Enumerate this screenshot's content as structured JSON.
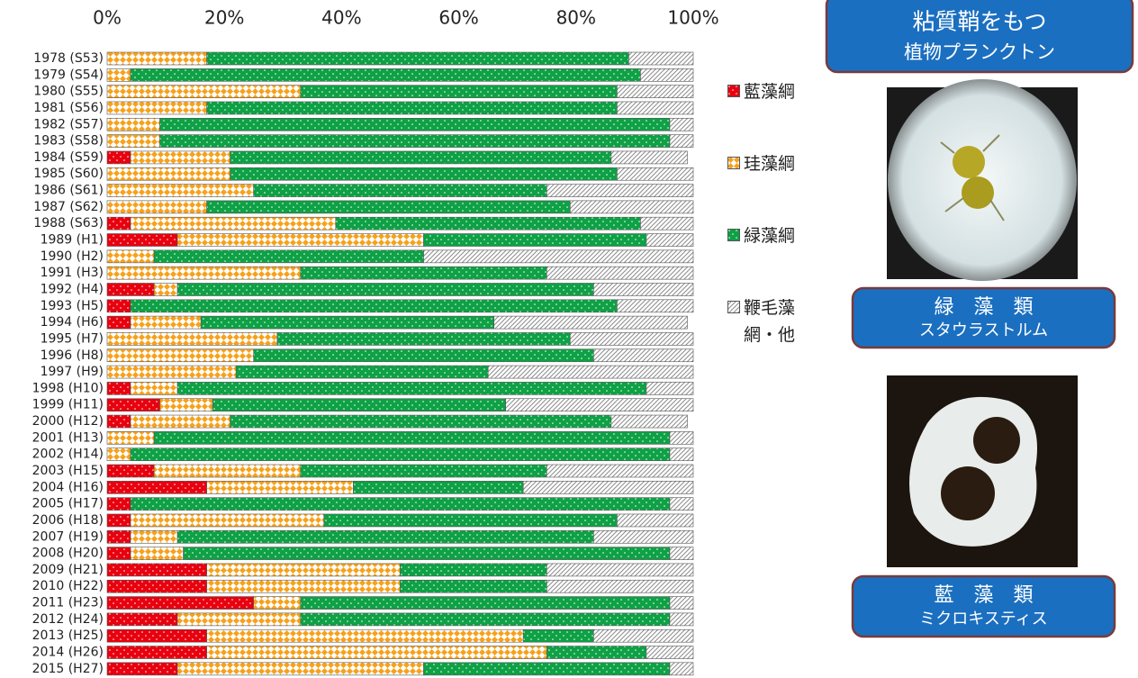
{
  "chart_data": {
    "type": "stacked-bar-horizontal",
    "categories": [
      "1978 (S53)",
      "1979 (S54)",
      "1980 (S55)",
      "1981 (S56)",
      "1982 (S57)",
      "1983 (S58)",
      "1984 (S59)",
      "1985 (S60)",
      "1986 (S61)",
      "1987 (S62)",
      "1988 (S63)",
      "1989 (H1)",
      "1990 (H2)",
      "1991 (H3)",
      "1992 (H4)",
      "1993 (H5)",
      "1994 (H6)",
      "1995 (H7)",
      "1996 (H8)",
      "1997 (H9)",
      "1998 (H10)",
      "1999 (H11)",
      "2000 (H12)",
      "2001 (H13)",
      "2002 (H14)",
      "2003 (H15)",
      "2004 (H16)",
      "2005 (H17)",
      "2006 (H18)",
      "2007 (H19)",
      "2008 (H20)",
      "2009 (H21)",
      "2010 (H22)",
      "2011 (H23)",
      "2012 (H24)",
      "2013 (H25)",
      "2014 (H26)",
      "2015 (H27)"
    ],
    "series": [
      {
        "name": "藍藻綱",
        "color": "#e8000f",
        "values": [
          0,
          0,
          0,
          0,
          0,
          0,
          4,
          0,
          0,
          0,
          4,
          12,
          0,
          0,
          8,
          4,
          4,
          0,
          0,
          0,
          4,
          9,
          4,
          0,
          0,
          8,
          17,
          4,
          4,
          4,
          4,
          17,
          17,
          25,
          12,
          17,
          17,
          12
        ]
      },
      {
        "name": "珪藻綱",
        "color": "#f7a11a",
        "values": [
          17,
          4,
          33,
          17,
          9,
          9,
          17,
          21,
          25,
          17,
          35,
          42,
          8,
          33,
          4,
          0,
          12,
          29,
          25,
          22,
          8,
          9,
          17,
          8,
          4,
          25,
          25,
          0,
          33,
          8,
          9,
          33,
          33,
          8,
          21,
          54,
          58,
          42
        ]
      },
      {
        "name": "緑藻綱",
        "color": "#0ea145",
        "values": [
          72,
          87,
          54,
          70,
          87,
          87,
          65,
          66,
          50,
          62,
          52,
          38,
          46,
          42,
          71,
          83,
          50,
          50,
          58,
          43,
          80,
          50,
          65,
          88,
          92,
          42,
          29,
          92,
          50,
          71,
          83,
          25,
          25,
          63,
          63,
          12,
          17,
          42
        ]
      },
      {
        "name": "鞭毛藻網・他",
        "color": "#d9d9d9",
        "values": [
          11,
          9,
          13,
          13,
          4,
          4,
          13,
          13,
          25,
          21,
          9,
          8,
          46,
          25,
          17,
          13,
          33,
          21,
          17,
          35,
          8,
          32,
          13,
          4,
          4,
          25,
          29,
          4,
          13,
          17,
          4,
          25,
          25,
          4,
          4,
          17,
          8,
          4
        ]
      }
    ],
    "xlim": [
      0,
      100
    ],
    "xticks": [
      {
        "value": 0,
        "label": "0%"
      },
      {
        "value": 20,
        "label": "20%"
      },
      {
        "value": 40,
        "label": "40%"
      },
      {
        "value": 60,
        "label": "60%"
      },
      {
        "value": 80,
        "label": "80%"
      },
      {
        "value": 100,
        "label": "100%"
      }
    ]
  },
  "panels": [
    {
      "lines": [
        "粘質鞘をもつ",
        "植物プランクトン"
      ]
    },
    {
      "lines": [
        "緑　藻　類",
        "スタウラストルム"
      ]
    },
    {
      "lines": [
        "藍　藻　類",
        "ミクロキスティス"
      ]
    }
  ]
}
